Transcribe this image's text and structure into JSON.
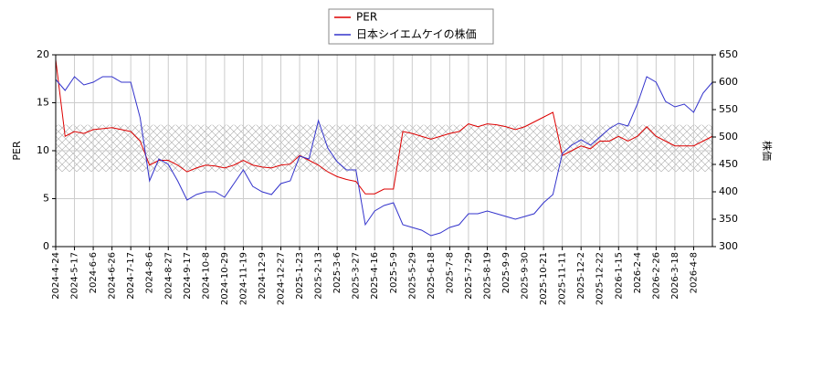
{
  "chart_data": {
    "type": "line",
    "categories": [
      "2024-4-24",
      null,
      "2024-5-17",
      null,
      "2024-6-6",
      null,
      "2024-6-26",
      null,
      "2024-7-17",
      null,
      "2024-8-6",
      null,
      "2024-8-27",
      null,
      "2024-9-17",
      null,
      "2024-10-8",
      null,
      "2024-10-29",
      null,
      "2024-11-19",
      null,
      "2024-12-9",
      null,
      "2024-12-27",
      null,
      "2025-1-23",
      null,
      "2025-2-13",
      null,
      "2025-3-6",
      null,
      "2025-3-27",
      null,
      "2025-4-16",
      null,
      "2025-5-9",
      null,
      "2025-5-29",
      null,
      "2025-6-18",
      null,
      "2025-7-8",
      null,
      "2025-7-29",
      null,
      "2025-8-19",
      null,
      "2025-9-9",
      null,
      "2025-9-30",
      null,
      "2025-10-21",
      null,
      "2025-11-11",
      null,
      "2025-12-2",
      null,
      "2025-12-22",
      null,
      "2026-1-15",
      null,
      "2026-2-4",
      null,
      "2026-2-26",
      null,
      "2026-3-18",
      null,
      "2026-4-8",
      null,
      null
    ],
    "series": [
      {
        "name": "PER",
        "color": "#dd0000",
        "values": [
          19.5,
          11.5,
          12,
          11.8,
          12.2,
          12.3,
          12.4,
          12.2,
          12.0,
          11,
          8.5,
          9.0,
          9.0,
          8.5,
          7.8,
          8.2,
          8.5,
          8.4,
          8.2,
          8.5,
          9,
          8.5,
          8.3,
          8.2,
          8.5,
          8.6,
          9.5,
          9.0,
          8.5,
          7.8,
          7.3,
          7.0,
          6.8,
          5.5,
          5.5,
          6,
          6.0,
          12,
          11.8,
          11.5,
          11.2,
          11.5,
          11.8,
          12.0,
          12.8,
          12.5,
          12.8,
          12.7,
          12.5,
          12.2,
          12.5,
          13,
          13.5,
          14,
          9.5,
          10,
          10.5,
          10.2,
          11,
          11,
          11.5,
          11.0,
          11.5,
          12.5,
          11.5,
          11,
          10.5,
          10.5,
          10.5,
          11,
          11.5
        ]
      },
      {
        "name": "日本シイエムケイの株価",
        "color": "#3333cc",
        "axis": "y2",
        "values": [
          605,
          585,
          610,
          595,
          600,
          610,
          610,
          600,
          600,
          535,
          420,
          460,
          450,
          420,
          385,
          395,
          400,
          400,
          390,
          415,
          440,
          410,
          400,
          395,
          415,
          420,
          465,
          460,
          530,
          480,
          455,
          440,
          440,
          340,
          365,
          375,
          380,
          340,
          335,
          330,
          320,
          325,
          335,
          340,
          360,
          360,
          365,
          360,
          355,
          350,
          355,
          360,
          380,
          395,
          470,
          485,
          495,
          485,
          500,
          515,
          525,
          520,
          560,
          610,
          600,
          565,
          555,
          560,
          545,
          580,
          600
        ]
      }
    ],
    "ylabel": "PER",
    "y2label": "株価",
    "ylim": [
      0,
      20
    ],
    "yticks": [
      0,
      5,
      10,
      15,
      20
    ],
    "y2lim": [
      300,
      650
    ],
    "y2ticks": [
      300,
      350,
      400,
      450,
      500,
      550,
      600,
      650
    ],
    "band": [
      7.8,
      12.7
    ],
    "grid": true,
    "legend": "top"
  }
}
